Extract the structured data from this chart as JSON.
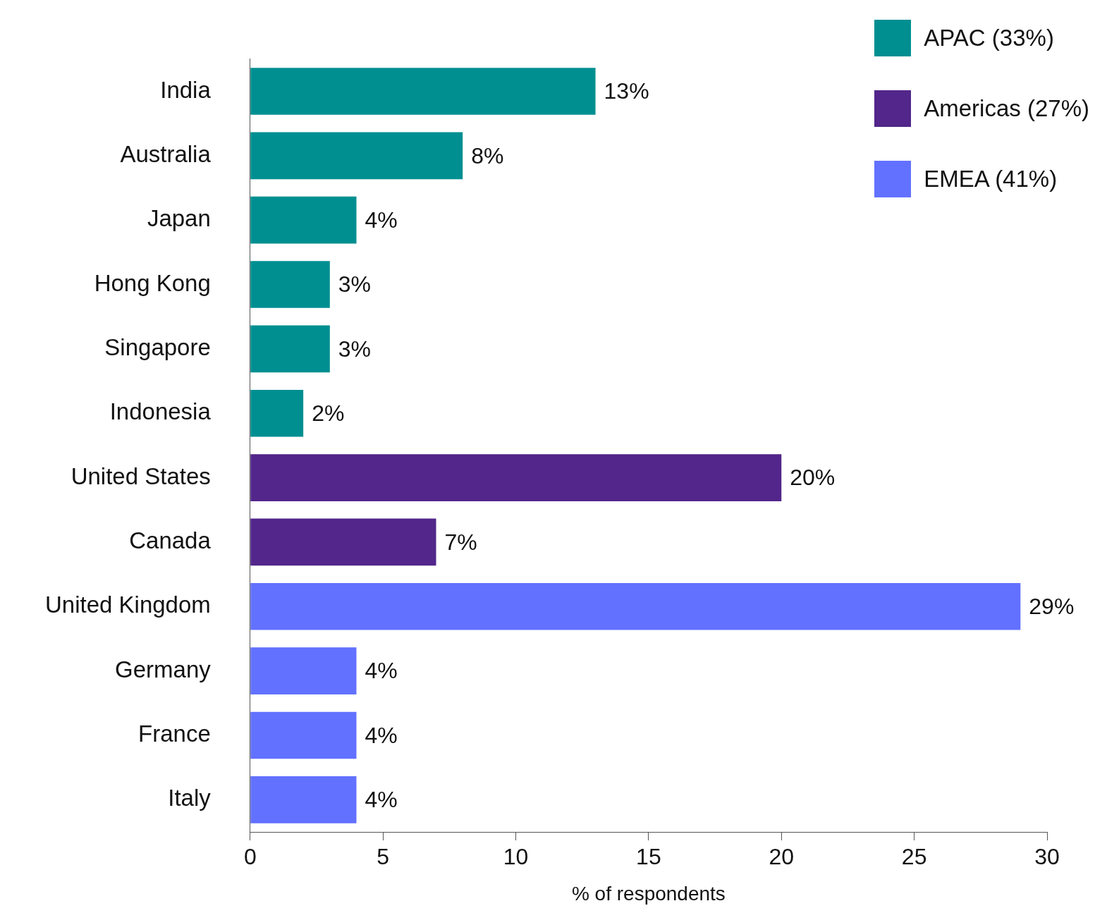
{
  "chart_data": {
    "type": "bar",
    "orientation": "horizontal",
    "xlabel": "% of respondents",
    "categories": [
      "India",
      "Australia",
      "Japan",
      "Hong Kong",
      "Singapore",
      "Indonesia",
      "United States",
      "Canada",
      "United Kingdom",
      "Germany",
      "France",
      "Italy"
    ],
    "series": [
      {
        "name": "APAC (33%)",
        "color": "#008f91",
        "values": [
          13,
          8,
          4,
          3,
          3,
          2,
          null,
          null,
          null,
          null,
          null,
          null
        ],
        "value_labels": [
          "13%",
          "8%",
          "4%",
          "3%",
          "3%",
          "2%",
          null,
          null,
          null,
          null,
          null,
          null
        ]
      },
      {
        "name": "Americas (27%)",
        "color": "#52268a",
        "values": [
          null,
          null,
          null,
          null,
          null,
          null,
          20,
          7,
          null,
          null,
          null,
          null
        ],
        "value_labels": [
          null,
          null,
          null,
          null,
          null,
          null,
          "20%",
          "7%",
          null,
          null,
          null,
          null
        ]
      },
      {
        "name": "EMEA (41%)",
        "color": "#6271ff",
        "values": [
          null,
          null,
          null,
          null,
          null,
          null,
          null,
          null,
          29,
          4,
          4,
          4
        ],
        "value_labels": [
          null,
          null,
          null,
          null,
          null,
          null,
          null,
          null,
          "29%",
          "4%",
          "4%",
          "4%"
        ]
      }
    ],
    "xlim": [
      0,
      30
    ],
    "xticks": [
      0,
      5,
      10,
      15,
      20,
      25,
      30
    ],
    "grid": false,
    "legend": "top right"
  }
}
